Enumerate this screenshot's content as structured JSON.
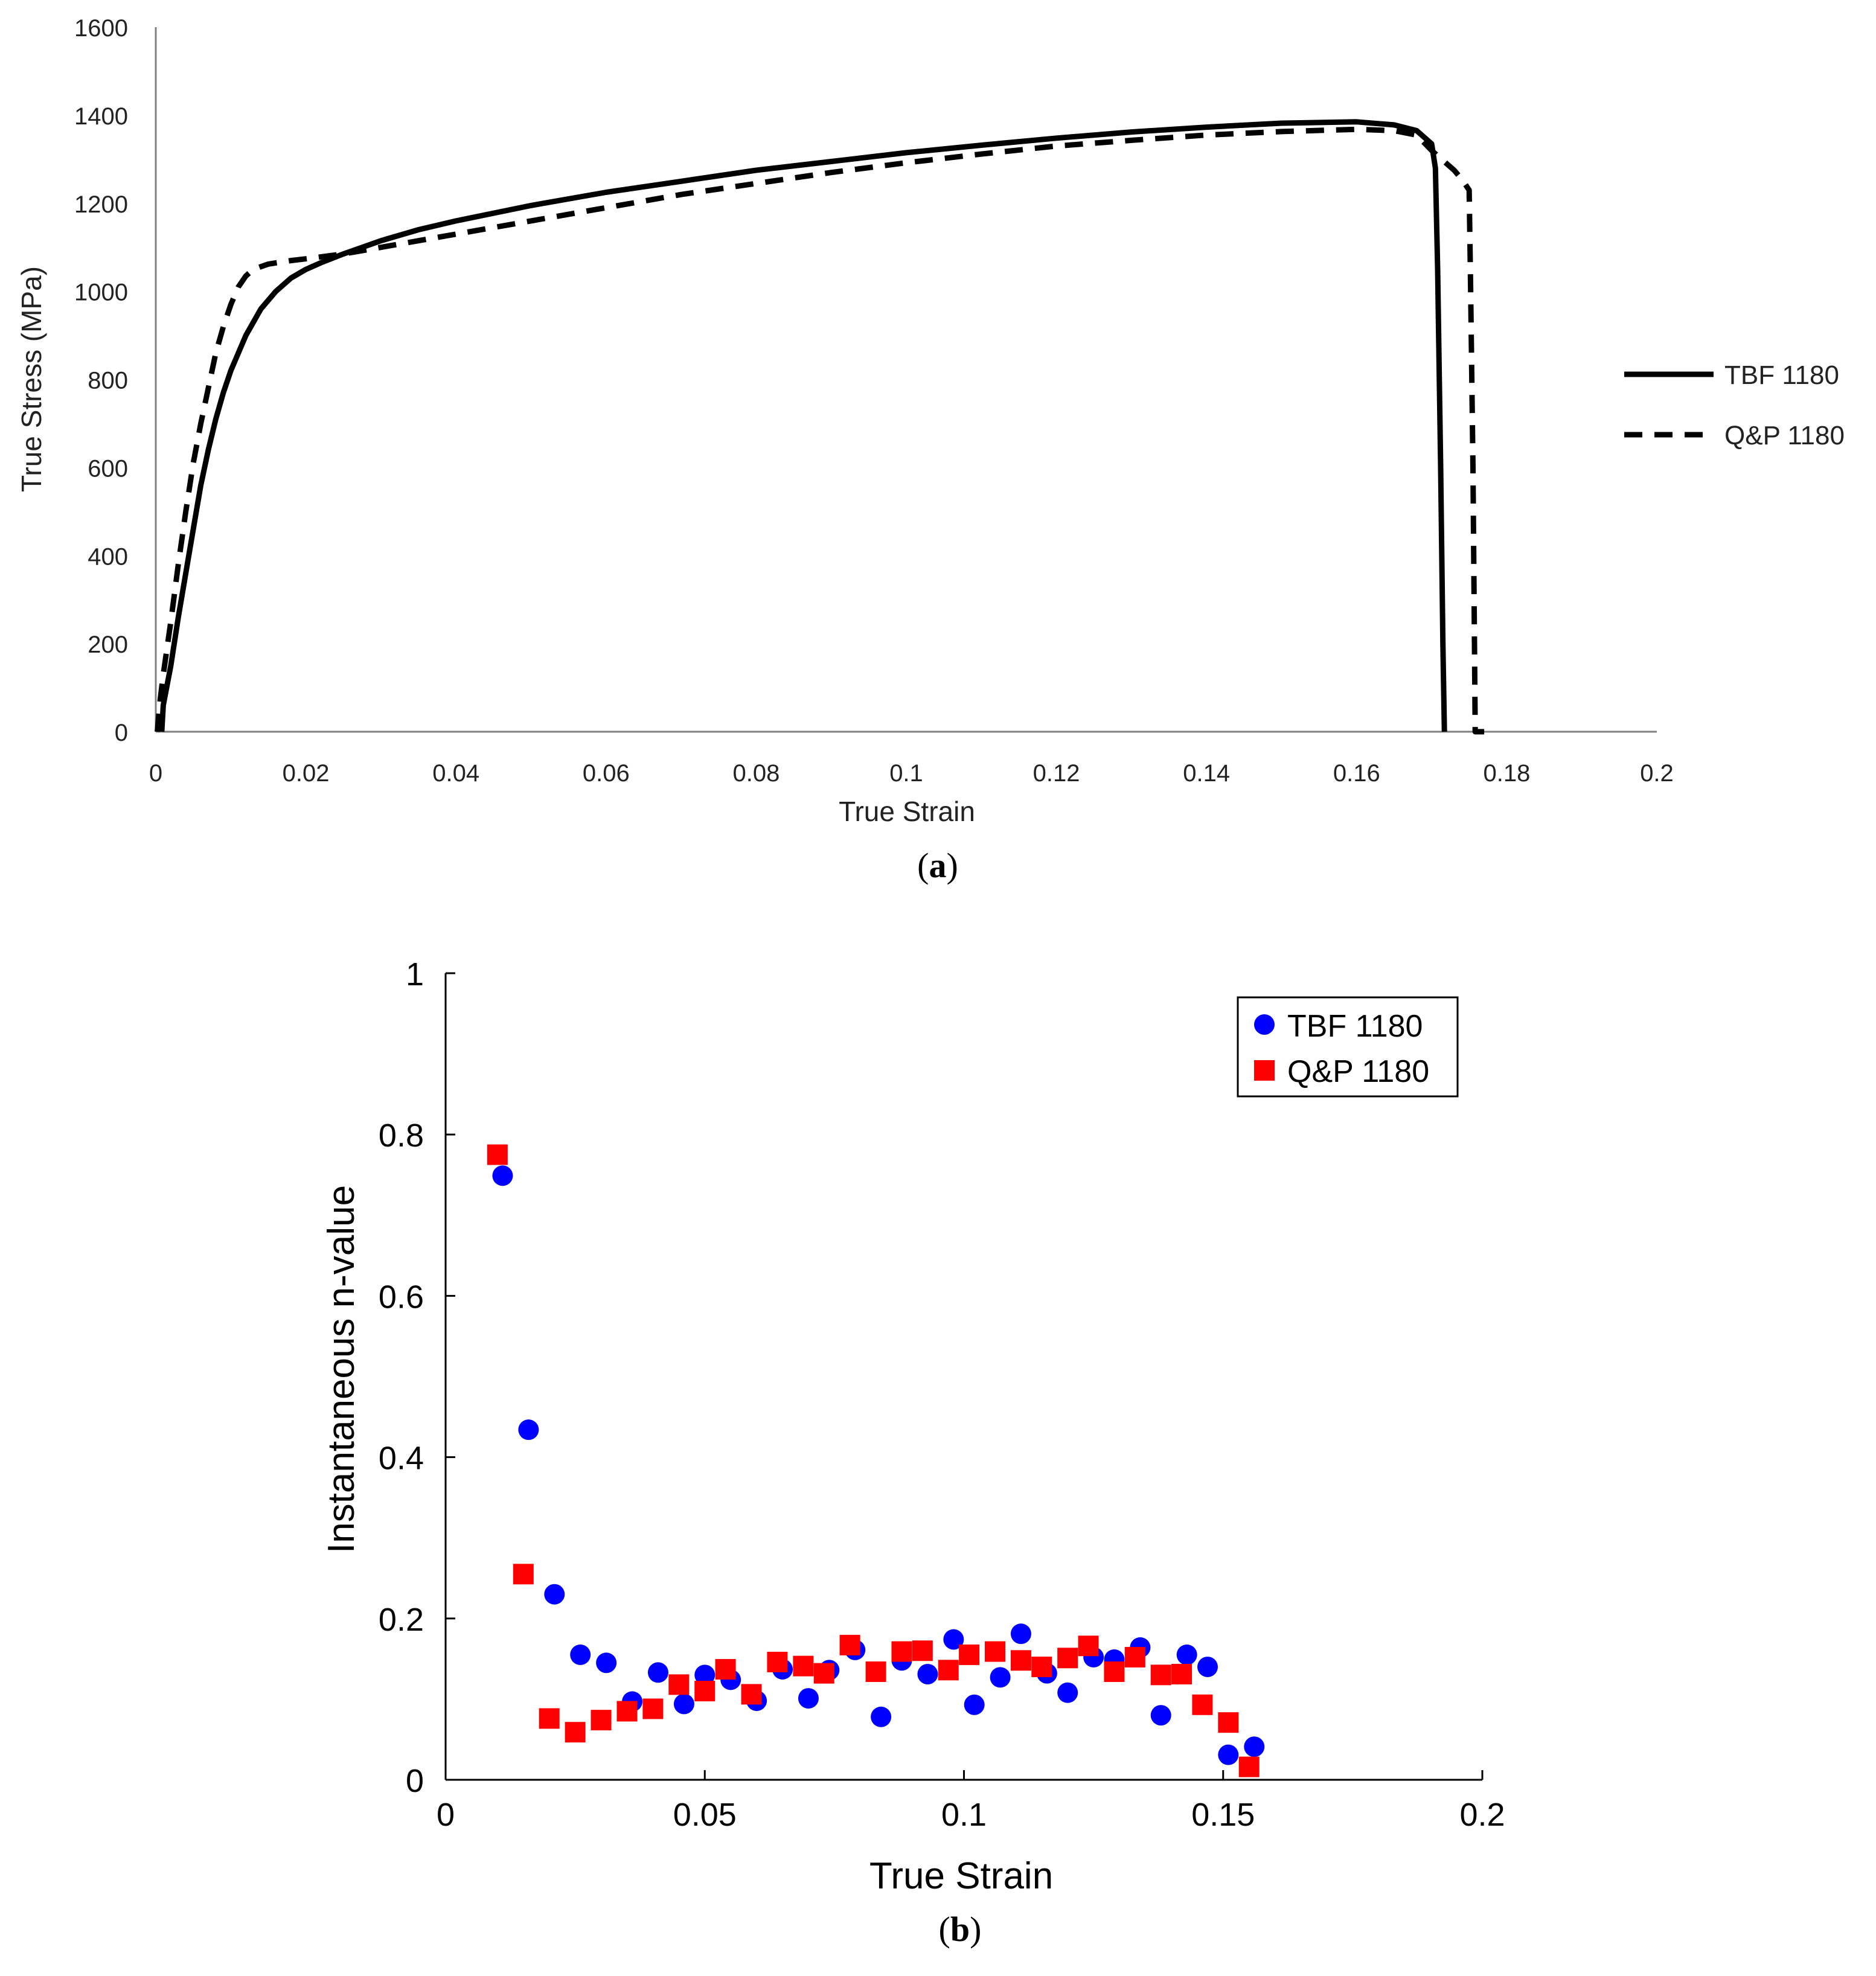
{
  "chart_data": [
    {
      "id": "a",
      "type": "line",
      "caption_open": "(",
      "caption_letter": "a",
      "caption_close": ")",
      "title": "",
      "xlabel": "True Strain",
      "ylabel": "True Stress (MPa)",
      "xlim": [
        0,
        0.2
      ],
      "ylim": [
        0,
        1600
      ],
      "xticks": [
        0,
        0.02,
        0.04,
        0.06,
        0.08,
        0.1,
        0.12,
        0.14,
        0.16,
        0.18,
        0.2
      ],
      "xtick_labels": [
        "0",
        "0.02",
        "0.04",
        "0.06",
        "0.08",
        "0.1",
        "0.12",
        "0.14",
        "0.16",
        "0.18",
        "0.2"
      ],
      "yticks": [
        0,
        200,
        400,
        600,
        800,
        1000,
        1200,
        1400,
        1600
      ],
      "ytick_labels": [
        "0",
        "200",
        "400",
        "600",
        "800",
        "1000",
        "1200",
        "1400",
        "1600"
      ],
      "legend_position": "right",
      "series": [
        {
          "name": "TBF 1180",
          "style": "solid",
          "color": "#000000",
          "points": [
            [
              0.0008,
              0
            ],
            [
              0.001,
              60
            ],
            [
              0.002,
              150
            ],
            [
              0.003,
              260
            ],
            [
              0.004,
              360
            ],
            [
              0.005,
              460
            ],
            [
              0.006,
              560
            ],
            [
              0.007,
              640
            ],
            [
              0.008,
              710
            ],
            [
              0.009,
              770
            ],
            [
              0.01,
              820
            ],
            [
              0.012,
              900
            ],
            [
              0.014,
              960
            ],
            [
              0.016,
              1000
            ],
            [
              0.018,
              1030
            ],
            [
              0.02,
              1050
            ],
            [
              0.022,
              1065
            ],
            [
              0.025,
              1085
            ],
            [
              0.03,
              1115
            ],
            [
              0.035,
              1140
            ],
            [
              0.04,
              1160
            ],
            [
              0.05,
              1195
            ],
            [
              0.06,
              1225
            ],
            [
              0.07,
              1250
            ],
            [
              0.08,
              1275
            ],
            [
              0.09,
              1295
            ],
            [
              0.1,
              1315
            ],
            [
              0.11,
              1332
            ],
            [
              0.12,
              1348
            ],
            [
              0.13,
              1362
            ],
            [
              0.14,
              1373
            ],
            [
              0.15,
              1382
            ],
            [
              0.16,
              1385
            ],
            [
              0.165,
              1378
            ],
            [
              0.168,
              1365
            ],
            [
              0.17,
              1335
            ],
            [
              0.1705,
              1280
            ],
            [
              0.1708,
              1050
            ],
            [
              0.1712,
              600
            ],
            [
              0.1715,
              200
            ],
            [
              0.1717,
              0
            ]
          ]
        },
        {
          "name": "Q&P 1180",
          "style": "dashed",
          "color": "#000000",
          "points": [
            [
              0.0002,
              0
            ],
            [
              0.0005,
              60
            ],
            [
              0.001,
              130
            ],
            [
              0.002,
              250
            ],
            [
              0.003,
              380
            ],
            [
              0.004,
              500
            ],
            [
              0.005,
              610
            ],
            [
              0.006,
              700
            ],
            [
              0.007,
              780
            ],
            [
              0.008,
              860
            ],
            [
              0.009,
              920
            ],
            [
              0.01,
              970
            ],
            [
              0.011,
              1010
            ],
            [
              0.012,
              1035
            ],
            [
              0.013,
              1050
            ],
            [
              0.015,
              1062
            ],
            [
              0.018,
              1070
            ],
            [
              0.02,
              1074
            ],
            [
              0.025,
              1085
            ],
            [
              0.03,
              1100
            ],
            [
              0.035,
              1115
            ],
            [
              0.04,
              1130
            ],
            [
              0.05,
              1160
            ],
            [
              0.06,
              1190
            ],
            [
              0.07,
              1220
            ],
            [
              0.08,
              1245
            ],
            [
              0.09,
              1270
            ],
            [
              0.1,
              1292
            ],
            [
              0.11,
              1312
            ],
            [
              0.12,
              1330
            ],
            [
              0.13,
              1343
            ],
            [
              0.14,
              1355
            ],
            [
              0.15,
              1363
            ],
            [
              0.16,
              1368
            ],
            [
              0.165,
              1365
            ],
            [
              0.168,
              1355
            ],
            [
              0.17,
              1320
            ],
            [
              0.172,
              1290
            ],
            [
              0.173,
              1275
            ],
            [
              0.174,
              1255
            ],
            [
              0.175,
              1230
            ],
            [
              0.1752,
              1000
            ],
            [
              0.1755,
              600
            ],
            [
              0.1757,
              200
            ],
            [
              0.1758,
              0
            ],
            [
              0.177,
              0
            ]
          ]
        }
      ]
    },
    {
      "id": "b",
      "type": "scatter",
      "caption_open": "(",
      "caption_letter": "b",
      "caption_close": ")",
      "title": "",
      "xlabel": "True Strain",
      "ylabel": "Instantaneous n-value",
      "xlim": [
        0,
        0.2
      ],
      "ylim": [
        0,
        1
      ],
      "xticks": [
        0,
        0.05,
        0.1,
        0.15,
        0.2
      ],
      "xtick_labels": [
        "0",
        "0.05",
        "0.1",
        "0.15",
        "0.2"
      ],
      "yticks": [
        0,
        0.2,
        0.4,
        0.6,
        0.8,
        1
      ],
      "ytick_labels": [
        "0",
        "0.2",
        "0.4",
        "0.6",
        "0.8",
        "1"
      ],
      "legend_position": "top-right",
      "series": [
        {
          "name": "TBF 1180",
          "marker": "circle",
          "color": "#0000ff",
          "points": [
            [
              0.011,
              0.749
            ],
            [
              0.016,
              0.434
            ],
            [
              0.021,
              0.23
            ],
            [
              0.026,
              0.155
            ],
            [
              0.031,
              0.145
            ],
            [
              0.036,
              0.097
            ],
            [
              0.041,
              0.133
            ],
            [
              0.046,
              0.094
            ],
            [
              0.05,
              0.13
            ],
            [
              0.055,
              0.124
            ],
            [
              0.06,
              0.098
            ],
            [
              0.065,
              0.137
            ],
            [
              0.07,
              0.101
            ],
            [
              0.074,
              0.136
            ],
            [
              0.079,
              0.161
            ],
            [
              0.084,
              0.078
            ],
            [
              0.088,
              0.148
            ],
            [
              0.093,
              0.131
            ],
            [
              0.098,
              0.174
            ],
            [
              0.102,
              0.093
            ],
            [
              0.107,
              0.127
            ],
            [
              0.111,
              0.181
            ],
            [
              0.116,
              0.132
            ],
            [
              0.12,
              0.108
            ],
            [
              0.125,
              0.152
            ],
            [
              0.129,
              0.149
            ],
            [
              0.134,
              0.164
            ],
            [
              0.138,
              0.08
            ],
            [
              0.143,
              0.155
            ],
            [
              0.147,
              0.14
            ],
            [
              0.151,
              0.031
            ],
            [
              0.156,
              0.041
            ]
          ]
        },
        {
          "name": "Q&P 1180",
          "marker": "square",
          "color": "#ff0000",
          "points": [
            [
              0.01,
              0.775
            ],
            [
              0.015,
              0.255
            ],
            [
              0.02,
              0.076
            ],
            [
              0.025,
              0.059
            ],
            [
              0.03,
              0.074
            ],
            [
              0.035,
              0.085
            ],
            [
              0.04,
              0.088
            ],
            [
              0.045,
              0.118
            ],
            [
              0.05,
              0.11
            ],
            [
              0.054,
              0.137
            ],
            [
              0.059,
              0.106
            ],
            [
              0.064,
              0.146
            ],
            [
              0.069,
              0.141
            ],
            [
              0.073,
              0.132
            ],
            [
              0.078,
              0.167
            ],
            [
              0.083,
              0.134
            ],
            [
              0.088,
              0.159
            ],
            [
              0.092,
              0.16
            ],
            [
              0.097,
              0.136
            ],
            [
              0.101,
              0.155
            ],
            [
              0.106,
              0.159
            ],
            [
              0.111,
              0.148
            ],
            [
              0.115,
              0.14
            ],
            [
              0.12,
              0.151
            ],
            [
              0.124,
              0.166
            ],
            [
              0.129,
              0.134
            ],
            [
              0.133,
              0.152
            ],
            [
              0.138,
              0.13
            ],
            [
              0.142,
              0.131
            ],
            [
              0.146,
              0.093
            ],
            [
              0.151,
              0.071
            ],
            [
              0.155,
              0.016
            ]
          ]
        }
      ]
    }
  ]
}
